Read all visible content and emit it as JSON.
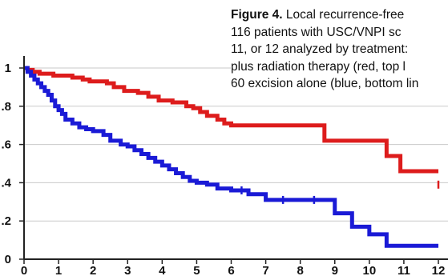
{
  "caption": {
    "label": "Figure 4.",
    "lines": [
      "Local recurrence-free",
      "116 patients with USC/VNPI sc",
      "11, or 12 analyzed by treatment:",
      "plus radiation therapy (red, top l",
      "60 excision alone (blue, bottom lin"
    ]
  },
  "chart_data": {
    "type": "line",
    "title": "",
    "xlabel": "",
    "ylabel": "",
    "xlim": [
      0,
      12
    ],
    "ylim": [
      0,
      1
    ],
    "grid": true,
    "x_ticks": [
      "0",
      "1",
      "2",
      "3",
      "4",
      "5",
      "6",
      "7",
      "8",
      "9",
      "10",
      "11",
      "12"
    ],
    "y_ticks": [
      "0",
      ".2",
      ".4",
      ".6",
      ".8",
      "1"
    ],
    "colors": {
      "red": "#dd1c1c",
      "blue": "#1a1ad6",
      "grid": "#c9c9c9",
      "axis": "#222222"
    },
    "series": [
      {
        "color": "red",
        "step_x": [
          0,
          0.1,
          0.25,
          0.45,
          0.65,
          0.85,
          1.1,
          1.4,
          1.7,
          1.9,
          2.2,
          2.4,
          2.6,
          2.9,
          3.3,
          3.6,
          3.9,
          4.3,
          4.7,
          4.9,
          5.1,
          5.3,
          5.6,
          5.8,
          6.0,
          6.4,
          7.2,
          8.2,
          8.7,
          10.5,
          10.9,
          12.0
        ],
        "step_y": [
          1.0,
          0.99,
          0.98,
          0.97,
          0.97,
          0.96,
          0.96,
          0.95,
          0.94,
          0.93,
          0.93,
          0.92,
          0.9,
          0.88,
          0.87,
          0.85,
          0.83,
          0.82,
          0.8,
          0.79,
          0.77,
          0.75,
          0.73,
          0.71,
          0.7,
          0.7,
          0.7,
          0.7,
          0.62,
          0.54,
          0.46,
          0.46
        ],
        "censor_x": [
          12.0
        ],
        "censor_y": [
          0.39
        ]
      },
      {
        "color": "blue",
        "step_x": [
          0,
          0.1,
          0.2,
          0.3,
          0.4,
          0.5,
          0.6,
          0.7,
          0.8,
          0.9,
          1.0,
          1.1,
          1.2,
          1.4,
          1.6,
          1.8,
          2.0,
          2.3,
          2.5,
          2.8,
          3.0,
          3.2,
          3.4,
          3.6,
          3.8,
          4.0,
          4.2,
          4.4,
          4.6,
          4.8,
          5.0,
          5.3,
          5.6,
          6.0,
          6.5,
          7.0,
          8.0,
          9.0,
          9.5,
          10.0,
          10.5,
          11.0,
          12.0
        ],
        "step_y": [
          1.0,
          0.98,
          0.96,
          0.94,
          0.92,
          0.9,
          0.88,
          0.86,
          0.83,
          0.8,
          0.78,
          0.76,
          0.73,
          0.71,
          0.69,
          0.68,
          0.67,
          0.65,
          0.62,
          0.6,
          0.59,
          0.57,
          0.55,
          0.53,
          0.51,
          0.49,
          0.47,
          0.45,
          0.43,
          0.41,
          0.4,
          0.39,
          0.37,
          0.36,
          0.34,
          0.31,
          0.31,
          0.24,
          0.17,
          0.13,
          0.07,
          0.07,
          0.07
        ],
        "censor_x": [
          6.3,
          7.5,
          8.4
        ],
        "censor_y": [
          0.36,
          0.31,
          0.31
        ]
      }
    ]
  }
}
